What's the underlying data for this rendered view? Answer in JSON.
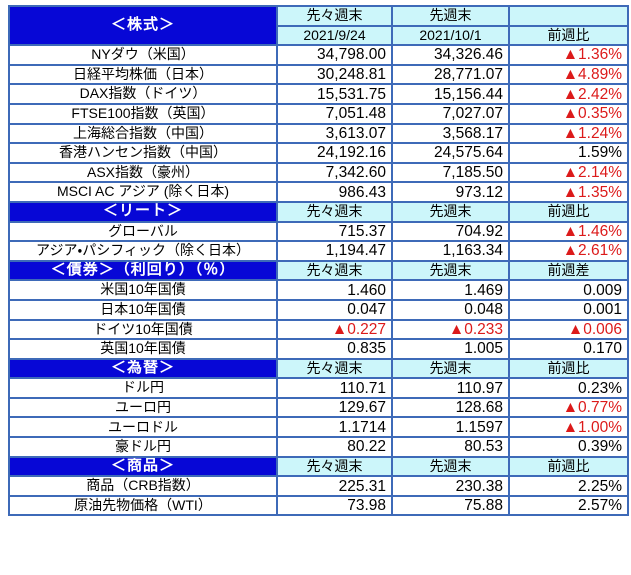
{
  "colors": {
    "section_header_bg": "#0707d6",
    "section_header_text": "#ffffff",
    "column_header_bg": "#ccf6fa",
    "border": "#3e6ab8",
    "negative": "#dc1a1a",
    "text": "#000000",
    "page_bg": "#ffffff"
  },
  "legend": {
    "negative_marker": "▲"
  },
  "sections": [
    {
      "id": "stocks",
      "title": "＜株式＞",
      "header_rows": [
        [
          "先々週末",
          "先週末",
          ""
        ],
        [
          "2021/9/24",
          "2021/10/1",
          "前週比"
        ]
      ],
      "rows": [
        {
          "label": "NYダウ（米国）",
          "values": [
            "34,798.00",
            "34,326.46",
            "▲1.36%"
          ]
        },
        {
          "label": "日経平均株価（日本）",
          "values": [
            "30,248.81",
            "28,771.07",
            "▲4.89%"
          ]
        },
        {
          "label": "DAX指数（ドイツ）",
          "values": [
            "15,531.75",
            "15,156.44",
            "▲2.42%"
          ]
        },
        {
          "label": "FTSE100指数（英国）",
          "values": [
            "7,051.48",
            "7,027.07",
            "▲0.35%"
          ]
        },
        {
          "label": "上海総合指数（中国）",
          "values": [
            "3,613.07",
            "3,568.17",
            "▲1.24%"
          ]
        },
        {
          "label": "香港ハンセン指数（中国）",
          "values": [
            "24,192.16",
            "24,575.64",
            "1.59%"
          ]
        },
        {
          "label": "ASX指数（豪州）",
          "values": [
            "7,342.60",
            "7,185.50",
            "▲2.14%"
          ]
        },
        {
          "label": "MSCI AC アジア (除く日本)",
          "values": [
            "986.43",
            "973.12",
            "▲1.35%"
          ]
        }
      ]
    },
    {
      "id": "reit",
      "title": "＜リート＞",
      "header_rows": [
        [
          "先々週末",
          "先週末",
          "前週比"
        ]
      ],
      "rows": [
        {
          "label": "グローバル",
          "values": [
            "715.37",
            "704.92",
            "▲1.46%"
          ]
        },
        {
          "label": "アジア・パシフィック（除く日本）",
          "values": [
            "1,194.47",
            "1,163.34",
            "▲2.61%"
          ]
        }
      ]
    },
    {
      "id": "bonds",
      "title": "＜債券＞（利回り）（％）",
      "header_rows": [
        [
          "先々週末",
          "先週末",
          "前週差"
        ]
      ],
      "rows": [
        {
          "label": "米国10年国債",
          "values": [
            "1.460",
            "1.469",
            "0.009"
          ]
        },
        {
          "label": "日本10年国債",
          "values": [
            "0.047",
            "0.048",
            "0.001"
          ]
        },
        {
          "label": "ドイツ10年国債",
          "values": [
            "▲0.227",
            "▲0.233",
            "▲0.006"
          ]
        },
        {
          "label": "英国10年国債",
          "values": [
            "0.835",
            "1.005",
            "0.170"
          ]
        }
      ]
    },
    {
      "id": "fx",
      "title": "＜為替＞",
      "header_rows": [
        [
          "先々週末",
          "先週末",
          "前週比"
        ]
      ],
      "rows": [
        {
          "label": "ドル円",
          "values": [
            "110.71",
            "110.97",
            "0.23%"
          ]
        },
        {
          "label": "ユーロ円",
          "values": [
            "129.67",
            "128.68",
            "▲0.77%"
          ]
        },
        {
          "label": "ユーロドル",
          "values": [
            "1.1714",
            "1.1597",
            "▲1.00%"
          ]
        },
        {
          "label": "豪ドル円",
          "values": [
            "80.22",
            "80.53",
            "0.39%"
          ]
        }
      ]
    },
    {
      "id": "commodities",
      "title": "＜商品＞",
      "header_rows": [
        [
          "先々週末",
          "先週末",
          "前週比"
        ]
      ],
      "rows": [
        {
          "label": "商品（CRB指数）",
          "values": [
            "225.31",
            "230.38",
            "2.25%"
          ]
        },
        {
          "label": "原油先物価格（WTI）",
          "values": [
            "73.98",
            "75.88",
            "2.57%"
          ]
        }
      ]
    }
  ]
}
